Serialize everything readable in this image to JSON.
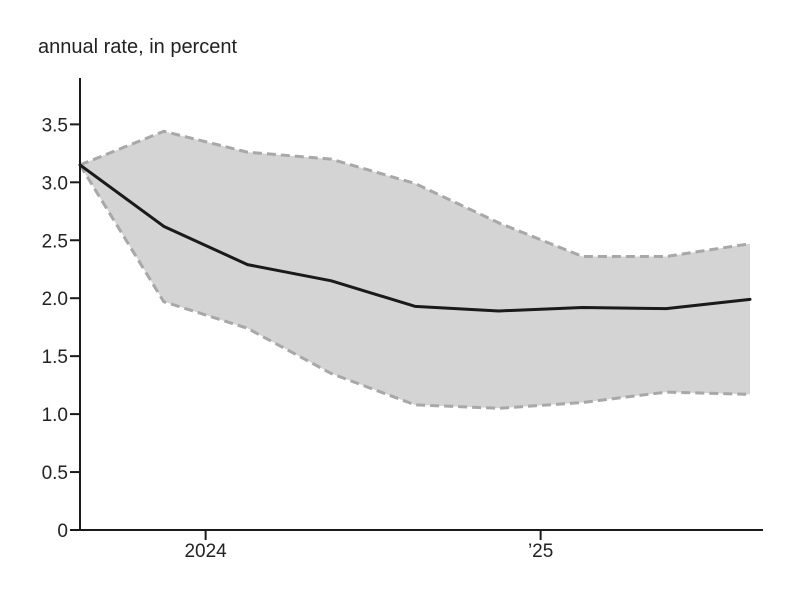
{
  "chart_data": {
    "type": "line",
    "ylabel": "annual rate, in percent",
    "xlabel": "",
    "title": "",
    "ylim": [
      0,
      3.9
    ],
    "yticks": [
      "0",
      "0.5",
      "1.0",
      "1.5",
      "2.0",
      "2.5",
      "3.0",
      "3.5"
    ],
    "ytick_values": [
      0,
      0.5,
      1.0,
      1.5,
      2.0,
      2.5,
      3.0,
      3.5
    ],
    "xtick_labels": [
      "2024",
      "’25"
    ],
    "xtick_positions": [
      1.5,
      5.5
    ],
    "x": [
      0,
      1,
      2,
      3,
      4,
      5,
      6,
      7,
      8
    ],
    "series": [
      {
        "values": [
          3.15,
          2.62,
          2.29,
          2.15,
          1.93,
          1.89,
          1.92,
          1.91,
          1.99
        ]
      }
    ],
    "band_upper": [
      3.15,
      3.44,
      3.26,
      3.2,
      2.99,
      2.65,
      2.36,
      2.36,
      2.47
    ],
    "band_lower": [
      3.15,
      1.97,
      1.74,
      1.35,
      1.08,
      1.05,
      1.1,
      1.19,
      1.17
    ],
    "colors": {
      "line": "#1a1a1a",
      "band_fill": "#d4d4d4",
      "band_edge": "#a8a8a8",
      "axis": "#1a1a1a"
    }
  }
}
